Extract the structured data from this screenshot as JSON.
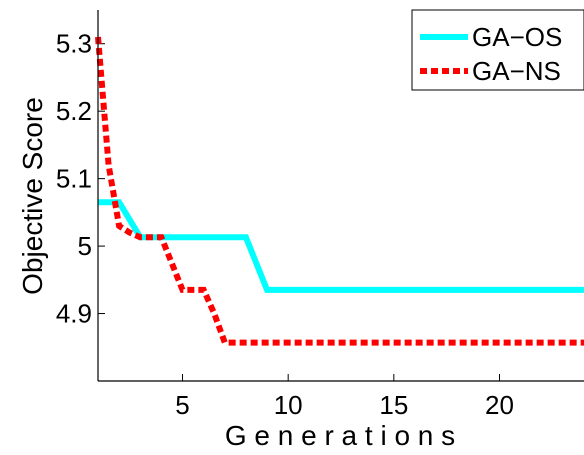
{
  "chart_data": {
    "type": "line",
    "title": "",
    "xlabel": "G e n e r a t i o n s",
    "ylabel": "Objective Score",
    "xlim": [
      1,
      24
    ],
    "ylim": [
      4.8,
      5.35
    ],
    "x_ticks": [
      5,
      10,
      15,
      20
    ],
    "y_ticks": [
      4.9,
      5,
      5.1,
      5.2,
      5.3
    ],
    "x_tick_labels": [
      "5",
      "10",
      "15",
      "20"
    ],
    "y_tick_labels": [
      "4.9",
      "5",
      "5.1",
      "5.2",
      "5.3"
    ],
    "grid": false,
    "legend_position": "top-right",
    "series": [
      {
        "name": "GA−OS",
        "color": "#00ffff",
        "style": "solid",
        "x": [
          1,
          2,
          3,
          4,
          5,
          6,
          7,
          8,
          9,
          10,
          11,
          12,
          13,
          14,
          15,
          16,
          17,
          18,
          19,
          20,
          21,
          22,
          23,
          24
        ],
        "y": [
          5.065,
          5.065,
          5.013,
          5.013,
          5.013,
          5.013,
          5.013,
          5.013,
          4.935,
          4.935,
          4.935,
          4.935,
          4.935,
          4.935,
          4.935,
          4.935,
          4.935,
          4.935,
          4.935,
          4.935,
          4.935,
          4.935,
          4.935,
          4.935
        ]
      },
      {
        "name": "GA−NS",
        "color": "#ff0000",
        "style": "dotted",
        "x": [
          1,
          1.5,
          2,
          2.5,
          3,
          4,
          5,
          6,
          6.5,
          7,
          8,
          9,
          10,
          11,
          12,
          13,
          14,
          15,
          16,
          17,
          18,
          19,
          20,
          21,
          22,
          23,
          24
        ],
        "y": [
          5.31,
          5.12,
          5.03,
          5.02,
          5.013,
          5.013,
          4.935,
          4.935,
          4.9,
          4.857,
          4.857,
          4.857,
          4.857,
          4.857,
          4.857,
          4.857,
          4.857,
          4.857,
          4.857,
          4.857,
          4.857,
          4.857,
          4.857,
          4.857,
          4.857,
          4.857,
          4.857
        ]
      }
    ]
  }
}
